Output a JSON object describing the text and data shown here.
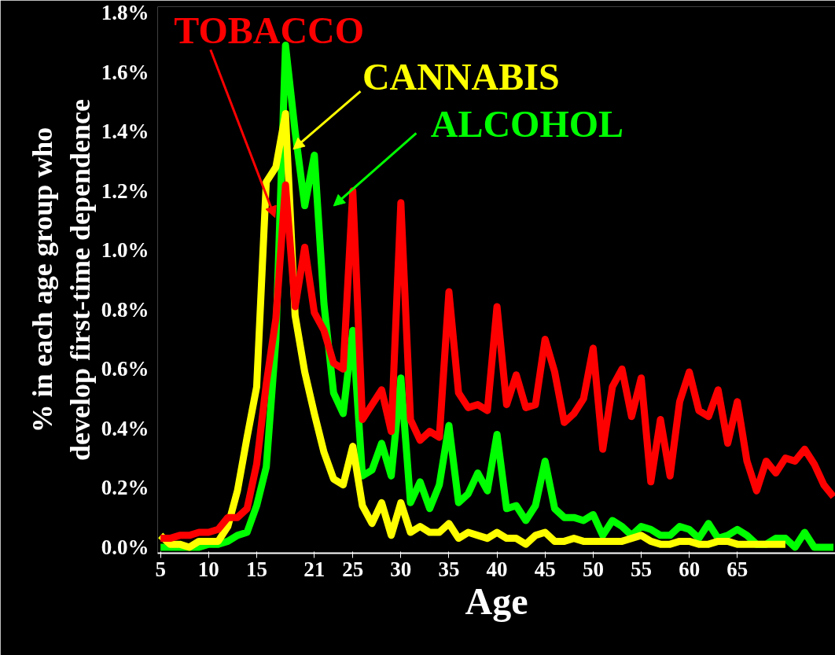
{
  "chart_data": {
    "type": "line",
    "xlabel": "Age",
    "ylabel": "% in each age group who\ndevelop first-time dependence",
    "xlim": [
      4.7,
      75.2
    ],
    "ylim": [
      -0.02,
      1.82
    ],
    "xticks": [
      5,
      10,
      15,
      21,
      25,
      30,
      35,
      40,
      45,
      50,
      55,
      60,
      65
    ],
    "yticks": [
      {
        "value": 0,
        "label": "0.0%"
      },
      {
        "value": 0.2,
        "label": "0.2%"
      },
      {
        "value": 0.4,
        "label": "0.4%"
      },
      {
        "value": 0.6,
        "label": "0.6%"
      },
      {
        "value": 0.8,
        "label": "0.8%"
      },
      {
        "value": 1.0,
        "label": "1.0%"
      },
      {
        "value": 1.2,
        "label": "1.2%"
      },
      {
        "value": 1.4,
        "label": "1.4%"
      },
      {
        "value": 1.6,
        "label": "1.6%"
      },
      {
        "value": 1.8,
        "label": "1.8%"
      }
    ],
    "grid": false,
    "legend": false,
    "marker": "none",
    "line_style": "solid",
    "series": [
      {
        "name": "TOBACCO",
        "color": "#ff0000",
        "x": [
          5,
          6,
          7,
          8,
          9,
          10,
          11,
          12,
          13,
          14,
          15,
          16,
          17,
          18,
          19,
          20,
          21,
          22,
          23,
          24,
          25,
          26,
          27,
          28,
          29,
          30,
          31,
          32,
          33,
          34,
          35,
          36,
          37,
          38,
          39,
          40,
          41,
          42,
          43,
          44,
          45,
          46,
          47,
          48,
          49,
          50,
          51,
          52,
          53,
          54,
          55,
          56,
          57,
          58,
          59,
          60,
          61,
          62,
          63,
          64,
          65,
          66,
          67,
          68,
          69,
          70,
          71,
          72,
          73,
          74,
          75
        ],
        "values": [
          0.03,
          0.03,
          0.04,
          0.04,
          0.05,
          0.05,
          0.06,
          0.1,
          0.1,
          0.13,
          0.28,
          0.55,
          0.77,
          1.22,
          0.81,
          1.01,
          0.79,
          0.73,
          0.62,
          0.6,
          1.2,
          0.43,
          0.48,
          0.53,
          0.39,
          1.16,
          0.43,
          0.36,
          0.39,
          0.37,
          0.86,
          0.52,
          0.47,
          0.48,
          0.46,
          0.81,
          0.48,
          0.58,
          0.47,
          0.48,
          0.7,
          0.59,
          0.42,
          0.45,
          0.5,
          0.67,
          0.33,
          0.54,
          0.6,
          0.44,
          0.57,
          0.22,
          0.43,
          0.24,
          0.49,
          0.59,
          0.46,
          0.44,
          0.53,
          0.35,
          0.49,
          0.29,
          0.19,
          0.29,
          0.25,
          0.3,
          0.29,
          0.33,
          0.28,
          0.21,
          0.17
        ]
      },
      {
        "name": "CANNABIS",
        "color": "#ffff00",
        "x": [
          5,
          6,
          7,
          8,
          9,
          10,
          11,
          12,
          13,
          14,
          15,
          16,
          17,
          18,
          19,
          20,
          21,
          22,
          23,
          24,
          25,
          26,
          27,
          28,
          29,
          30,
          31,
          32,
          33,
          34,
          35,
          36,
          37,
          38,
          39,
          40,
          41,
          42,
          43,
          44,
          45,
          46,
          47,
          48,
          49,
          50,
          51,
          52,
          53,
          54,
          55,
          56,
          57,
          58,
          59,
          60,
          61,
          62,
          63,
          64,
          65,
          66,
          67,
          68,
          69,
          70
        ],
        "values": [
          0.04,
          0.01,
          0.01,
          0,
          0.02,
          0.02,
          0.02,
          0.07,
          0.19,
          0.37,
          0.54,
          1.23,
          1.28,
          1.46,
          0.78,
          0.59,
          0.45,
          0.32,
          0.23,
          0.21,
          0.34,
          0.14,
          0.08,
          0.15,
          0.04,
          0.15,
          0.05,
          0.07,
          0.05,
          0.05,
          0.08,
          0.03,
          0.05,
          0.04,
          0.03,
          0.05,
          0.03,
          0.03,
          0.01,
          0.04,
          0.05,
          0.02,
          0.02,
          0.03,
          0.02,
          0.02,
          0.02,
          0.02,
          0.02,
          0.03,
          0.04,
          0.02,
          0.01,
          0.01,
          0.02,
          0.02,
          0.01,
          0.01,
          0.02,
          0.02,
          0.01,
          0.01,
          0.01,
          0.01,
          0.01,
          0.01
        ]
      },
      {
        "name": "ALCOHOL",
        "color": "#00ff00",
        "x": [
          5,
          6,
          7,
          8,
          9,
          10,
          11,
          12,
          13,
          14,
          15,
          16,
          17,
          18,
          19,
          20,
          21,
          22,
          23,
          24,
          25,
          26,
          27,
          28,
          29,
          30,
          31,
          32,
          33,
          34,
          35,
          36,
          37,
          38,
          39,
          40,
          41,
          42,
          43,
          44,
          45,
          46,
          47,
          48,
          49,
          50,
          51,
          52,
          53,
          54,
          55,
          56,
          57,
          58,
          59,
          60,
          61,
          62,
          63,
          64,
          65,
          66,
          67,
          68,
          69,
          70,
          71,
          72,
          73,
          74,
          75
        ],
        "values": [
          0,
          0,
          0,
          0,
          0,
          0.01,
          0.01,
          0.02,
          0.04,
          0.05,
          0.14,
          0.27,
          0.7,
          1.69,
          1.4,
          1.15,
          1.32,
          0.82,
          0.52,
          0.45,
          0.73,
          0.24,
          0.26,
          0.35,
          0.24,
          0.57,
          0.15,
          0.22,
          0.13,
          0.21,
          0.41,
          0.15,
          0.18,
          0.25,
          0.19,
          0.38,
          0.13,
          0.14,
          0.09,
          0.14,
          0.29,
          0.13,
          0.1,
          0.1,
          0.09,
          0.11,
          0.04,
          0.09,
          0.07,
          0.04,
          0.07,
          0.06,
          0.04,
          0.04,
          0.07,
          0.06,
          0.03,
          0.08,
          0.03,
          0.04,
          0.06,
          0.04,
          0.01,
          0.01,
          0.03,
          0.03,
          0,
          0.05,
          0,
          0,
          0
        ]
      }
    ]
  }
}
